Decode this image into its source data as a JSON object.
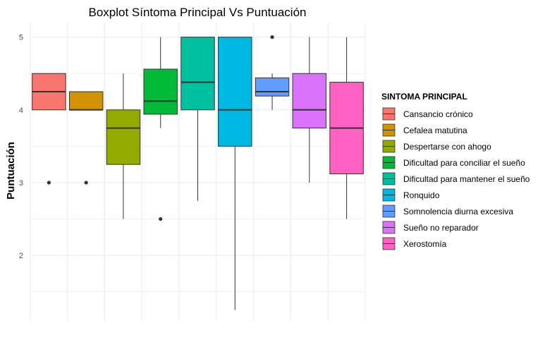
{
  "chart_data": {
    "type": "boxplot",
    "title": "Boxplot Síntoma Principal Vs Puntuación",
    "xlabel": "",
    "ylabel": "Puntuación",
    "ylim": [
      1.1,
      5.2
    ],
    "yticks": [
      2,
      3,
      4,
      5
    ],
    "grid": true,
    "legend": {
      "title": "SINTOMA PRINCIPAL",
      "position": "right"
    },
    "series": [
      {
        "name": "Cansancio crónico",
        "color": "#F8766D",
        "q1": 4.0,
        "median": 4.25,
        "q3": 4.5,
        "whisker_low": 4.0,
        "whisker_high": 4.5,
        "outliers": [
          3.0
        ]
      },
      {
        "name": "Cefalea matutina",
        "color": "#D39200",
        "q1": 4.0,
        "median": 4.0,
        "q3": 4.25,
        "whisker_low": 4.0,
        "whisker_high": 4.25,
        "outliers": [
          3.0
        ]
      },
      {
        "name": "Despertarse con ahogo",
        "color": "#93AA00",
        "q1": 3.25,
        "median": 3.75,
        "q3": 4.0,
        "whisker_low": 2.5,
        "whisker_high": 4.5,
        "outliers": []
      },
      {
        "name": "Dificultad para conciliar el sueño",
        "color": "#00BA38",
        "q1": 3.94,
        "median": 4.12,
        "q3": 4.56,
        "whisker_low": 3.75,
        "whisker_high": 5.0,
        "outliers": [
          2.5
        ]
      },
      {
        "name": "Dificultad para mantener el sueño",
        "color": "#00C19F",
        "q1": 4.0,
        "median": 4.38,
        "q3": 5.0,
        "whisker_low": 2.75,
        "whisker_high": 5.0,
        "outliers": []
      },
      {
        "name": "Ronquido",
        "color": "#00B9E3",
        "q1": 3.5,
        "median": 4.0,
        "q3": 5.0,
        "whisker_low": 1.25,
        "whisker_high": 5.0,
        "outliers": []
      },
      {
        "name": "Somnolencia diurna excesiva",
        "color": "#619CFF",
        "q1": 4.19,
        "median": 4.25,
        "q3": 4.44,
        "whisker_low": 4.0,
        "whisker_high": 4.5,
        "outliers": [
          5.0
        ]
      },
      {
        "name": "Sueño no reparador",
        "color": "#DB72FB",
        "q1": 3.75,
        "median": 4.0,
        "q3": 4.5,
        "whisker_low": 3.0,
        "whisker_high": 5.0,
        "outliers": []
      },
      {
        "name": "Xerostomía",
        "color": "#FF61C3",
        "q1": 3.12,
        "median": 3.75,
        "q3": 4.38,
        "whisker_low": 2.5,
        "whisker_high": 5.0,
        "outliers": []
      }
    ]
  }
}
